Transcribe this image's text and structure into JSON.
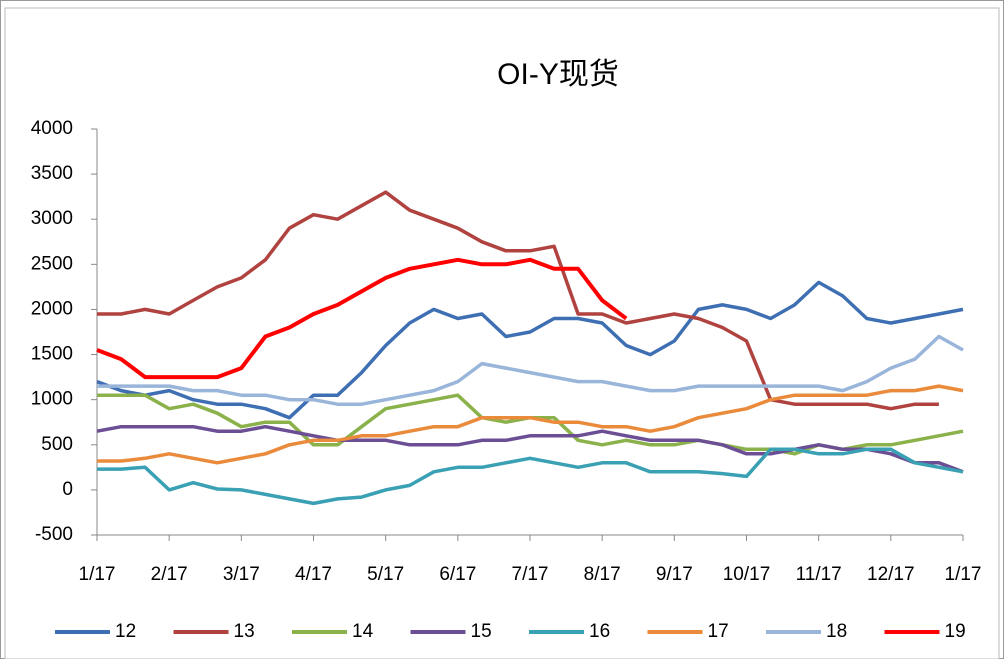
{
  "chart_data": {
    "type": "line",
    "title": "OI-Y现货",
    "categories": [
      "1/17",
      null,
      null,
      "2/17",
      null,
      null,
      "3/17",
      null,
      null,
      "4/17",
      null,
      null,
      "5/17",
      null,
      null,
      "6/17",
      null,
      null,
      "7/17",
      null,
      null,
      "8/17",
      null,
      null,
      "9/17",
      null,
      null,
      "10/17",
      null,
      null,
      "11/17",
      null,
      null,
      "12/17",
      null,
      null,
      "1/17"
    ],
    "ylim": [
      -500,
      4000
    ],
    "yticks": [
      -500,
      0,
      500,
      1000,
      1500,
      2000,
      2500,
      3000,
      3500,
      4000
    ],
    "grid": false,
    "legend": "bottom",
    "series": [
      {
        "name": "12",
        "color": "#3f6fb3",
        "values": [
          1200,
          1100,
          1050,
          1100,
          1000,
          950,
          950,
          900,
          800,
          1050,
          1050,
          1300,
          1600,
          1850,
          2000,
          1900,
          1950,
          1700,
          1750,
          1900,
          1900,
          1850,
          1600,
          1500,
          1650,
          2000,
          2050,
          2000,
          1900,
          2050,
          2300,
          2150,
          1900,
          1850,
          1900,
          1950,
          2000
        ]
      },
      {
        "name": "13",
        "color": "#b0423f",
        "values": [
          1950,
          1950,
          2000,
          1950,
          2100,
          2250,
          2350,
          2550,
          2900,
          3050,
          3000,
          3150,
          3300,
          3100,
          3000,
          2900,
          2750,
          2650,
          2650,
          2700,
          1950,
          1950,
          1850,
          1900,
          1950,
          1900,
          1800,
          1650,
          1000,
          950,
          950,
          950,
          950,
          900,
          950,
          950,
          null
        ]
      },
      {
        "name": "14",
        "color": "#8bb14b",
        "values": [
          1050,
          1050,
          1050,
          900,
          950,
          850,
          700,
          750,
          750,
          500,
          500,
          700,
          900,
          950,
          1000,
          1050,
          800,
          750,
          800,
          800,
          550,
          500,
          550,
          500,
          500,
          550,
          500,
          450,
          450,
          400,
          500,
          450,
          500,
          500,
          550,
          600,
          650
        ]
      },
      {
        "name": "15",
        "color": "#6b4e94",
        "values": [
          650,
          700,
          700,
          700,
          700,
          650,
          650,
          700,
          650,
          600,
          550,
          550,
          550,
          500,
          500,
          500,
          550,
          550,
          600,
          600,
          600,
          650,
          600,
          550,
          550,
          550,
          500,
          400,
          400,
          450,
          500,
          450,
          450,
          400,
          300,
          300,
          200
        ]
      },
      {
        "name": "16",
        "color": "#3aa0b4",
        "values": [
          230,
          230,
          250,
          0,
          80,
          10,
          0,
          -50,
          -100,
          -150,
          -100,
          -80,
          0,
          50,
          200,
          250,
          250,
          300,
          350,
          300,
          250,
          300,
          300,
          200,
          200,
          200,
          180,
          150,
          450,
          450,
          400,
          400,
          450,
          450,
          300,
          250,
          200
        ]
      },
      {
        "name": "17",
        "color": "#ea8a3b",
        "values": [
          320,
          320,
          350,
          400,
          350,
          300,
          350,
          400,
          500,
          550,
          550,
          600,
          600,
          650,
          700,
          700,
          800,
          800,
          800,
          750,
          750,
          700,
          700,
          650,
          700,
          800,
          850,
          900,
          1000,
          1050,
          1050,
          1050,
          1050,
          1100,
          1100,
          1150,
          1100
        ]
      },
      {
        "name": "18",
        "color": "#9ab5da",
        "values": [
          1150,
          1150,
          1150,
          1150,
          1100,
          1100,
          1050,
          1050,
          1000,
          1000,
          950,
          950,
          1000,
          1050,
          1100,
          1200,
          1400,
          1350,
          1300,
          1250,
          1200,
          1200,
          1150,
          1100,
          1100,
          1150,
          1150,
          1150,
          1150,
          1150,
          1150,
          1100,
          1200,
          1350,
          1450,
          1700,
          1550
        ]
      },
      {
        "name": "19",
        "color": "#ff0000",
        "values": [
          1550,
          1450,
          1250,
          1250,
          1250,
          1250,
          1350,
          1700,
          1800,
          1950,
          2050,
          2200,
          2350,
          2450,
          2500,
          2550,
          2500,
          2500,
          2550,
          2450,
          2450,
          2100,
          1900,
          null,
          null,
          null,
          null,
          null,
          null,
          null,
          null,
          null,
          null,
          null,
          null,
          null,
          null
        ]
      }
    ]
  }
}
